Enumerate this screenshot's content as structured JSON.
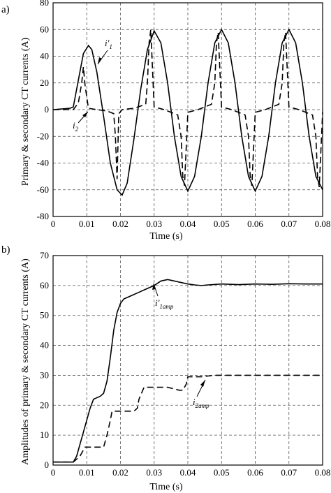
{
  "chart_data": [
    {
      "panel_label": "a)",
      "type": "line",
      "xlabel": "Time (s)",
      "ylabel": "Primary & secondary CT currents (A)",
      "xlim": [
        0,
        0.08
      ],
      "ylim": [
        -80,
        80
      ],
      "xticks": [
        "0",
        "0.01",
        "0.02",
        "0.03",
        "0.04",
        "0.05",
        "0.06",
        "0.07",
        "0.08"
      ],
      "yticks": [
        "-80",
        "-60",
        "-40",
        "-20",
        "0",
        "20",
        "40",
        "60",
        "80"
      ],
      "grid": true,
      "series": [
        {
          "name": "i'1",
          "style": "solid",
          "x": [
            0,
            0.005,
            0.006,
            0.0075,
            0.009,
            0.0105,
            0.0115,
            0.013,
            0.015,
            0.017,
            0.019,
            0.0205,
            0.022,
            0.024,
            0.026,
            0.028,
            0.03,
            0.032,
            0.034,
            0.036,
            0.038,
            0.04,
            0.042,
            0.044,
            0.046,
            0.048,
            0.05,
            0.052,
            0.054,
            0.056,
            0.058,
            0.06,
            0.062,
            0.064,
            0.066,
            0.068,
            0.07,
            0.072,
            0.074,
            0.076,
            0.078,
            0.08
          ],
          "y": [
            0,
            1,
            2,
            22,
            42,
            48,
            45,
            28,
            -5,
            -40,
            -60,
            -64,
            -55,
            -22,
            15,
            45,
            59,
            50,
            20,
            -20,
            -50,
            -61,
            -50,
            -20,
            20,
            50,
            60,
            50,
            20,
            -20,
            -50,
            -61,
            -50,
            -20,
            20,
            50,
            60,
            50,
            20,
            -20,
            -50,
            -60
          ]
        },
        {
          "name": "i2",
          "style": "dashed",
          "x": [
            0,
            0.006,
            0.0075,
            0.0085,
            0.009,
            0.0095,
            0.0105,
            0.013,
            0.016,
            0.018,
            0.0185,
            0.019,
            0.0195,
            0.0205,
            0.024,
            0.0275,
            0.028,
            0.0285,
            0.029,
            0.03,
            0.033,
            0.037,
            0.038,
            0.0385,
            0.039,
            0.04,
            0.043,
            0.047,
            0.048,
            0.0485,
            0.049,
            0.05,
            0.053,
            0.057,
            0.058,
            0.0585,
            0.059,
            0.06,
            0.063,
            0.067,
            0.068,
            0.0685,
            0.069,
            0.07,
            0.073,
            0.077,
            0.078,
            0.0785,
            0.079,
            0.08
          ],
          "y": [
            0,
            0,
            5,
            20,
            32,
            18,
            1,
            0,
            -1,
            -3,
            -20,
            -52,
            -3,
            0,
            1,
            4,
            20,
            50,
            60,
            2,
            0,
            -4,
            -20,
            -50,
            -57,
            -2,
            0,
            4,
            20,
            50,
            58,
            2,
            0,
            -4,
            -20,
            -50,
            -57,
            -2,
            0,
            4,
            20,
            50,
            58,
            2,
            0,
            -4,
            -20,
            -50,
            -58,
            -2
          ]
        }
      ],
      "annotations": [
        {
          "text": "i'",
          "subscript": "1",
          "series": "i'1"
        },
        {
          "text": "i",
          "subscript": "2",
          "series": "i2"
        }
      ]
    },
    {
      "panel_label": "b)",
      "type": "line",
      "xlabel": "Time (s)",
      "ylabel": "Amplitudes of primary & secondary CT currents (A)",
      "xlim": [
        0,
        0.08
      ],
      "ylim": [
        0,
        70
      ],
      "xticks": [
        "0",
        "0.01",
        "0.02",
        "0.03",
        "0.04",
        "0.05",
        "0.06",
        "0.07",
        "0.08"
      ],
      "yticks": [
        "0",
        "10",
        "20",
        "30",
        "40",
        "50",
        "60",
        "70"
      ],
      "grid": true,
      "series": [
        {
          "name": "i'1amp",
          "style": "solid",
          "x": [
            0,
            0.006,
            0.007,
            0.008,
            0.009,
            0.01,
            0.011,
            0.012,
            0.013,
            0.014,
            0.015,
            0.016,
            0.017,
            0.018,
            0.019,
            0.02,
            0.021,
            0.022,
            0.023,
            0.024,
            0.025,
            0.026,
            0.027,
            0.028,
            0.029,
            0.03,
            0.032,
            0.034,
            0.036,
            0.038,
            0.04,
            0.042,
            0.044,
            0.046,
            0.05,
            0.055,
            0.06,
            0.065,
            0.07,
            0.075,
            0.08
          ],
          "y": [
            1,
            1,
            3,
            7,
            11,
            15,
            19,
            22,
            22.5,
            23,
            24,
            28,
            36,
            45,
            51,
            54,
            55.5,
            56,
            56.5,
            57,
            57.5,
            58,
            58.5,
            59,
            59.5,
            60,
            61.5,
            62,
            61.5,
            61,
            60.5,
            60.2,
            60,
            60.2,
            60.5,
            60.3,
            60.5,
            60.4,
            60.6,
            60.5,
            60.5
          ]
        },
        {
          "name": "i2amp",
          "style": "dashed",
          "x": [
            0,
            0.006,
            0.008,
            0.009,
            0.0095,
            0.0115,
            0.012,
            0.015,
            0.016,
            0.017,
            0.0175,
            0.022,
            0.024,
            0.025,
            0.0255,
            0.027,
            0.034,
            0.0375,
            0.0385,
            0.0395,
            0.04,
            0.044,
            0.048,
            0.05,
            0.06,
            0.07,
            0.08
          ],
          "y": [
            1,
            1,
            3,
            5,
            6,
            6,
            6,
            6,
            10,
            15,
            18,
            18,
            18,
            19,
            22,
            26,
            26,
            25,
            25,
            27,
            29.5,
            29.5,
            30,
            30,
            30,
            30,
            30
          ]
        }
      ],
      "annotations": [
        {
          "text": "i'",
          "subscript": "1amp",
          "series": "i'1amp"
        },
        {
          "text": "i",
          "subscript": "2amp",
          "series": "i2amp"
        }
      ]
    }
  ]
}
